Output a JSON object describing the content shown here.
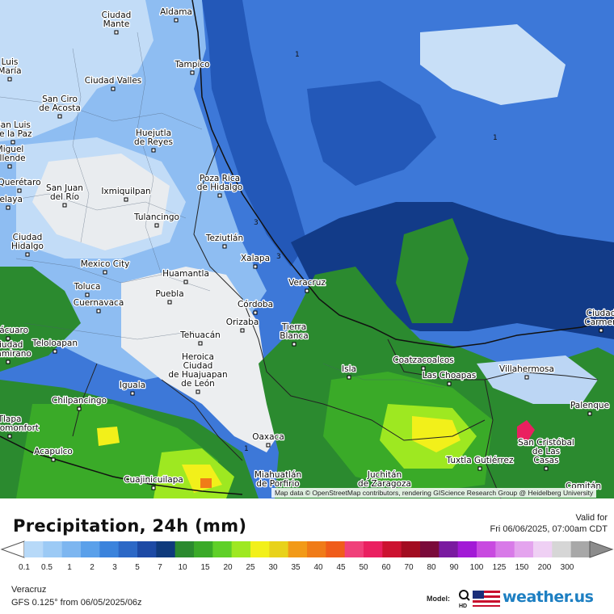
{
  "map": {
    "attribution": "Map data © OpenStreetMap contributors, rendering GIScience Research Group @ Heidelberg University",
    "contour_labels": [
      "1",
      "1",
      "1",
      "3",
      "3"
    ],
    "cities": [
      {
        "name": "Ciudad\nMante"
      },
      {
        "name": "Aldama"
      },
      {
        "name": "Tampico"
      },
      {
        "name": "Ciudad Valles"
      },
      {
        "name": "San Ciro\nde Acosta"
      },
      {
        "name": "Huejutla\nde Reyes"
      },
      {
        "name": "Poza Rica\nde Hidalgo"
      },
      {
        "name": "Querétaro"
      },
      {
        "name": "San Juan\ndel Río"
      },
      {
        "name": "Ixmiquilpan"
      },
      {
        "name": "Tulancingo"
      },
      {
        "name": "Teziutlán"
      },
      {
        "name": "Ciudad\nHidalgo"
      },
      {
        "name": "Mexico City"
      },
      {
        "name": "Xalapa"
      },
      {
        "name": "Huamantla"
      },
      {
        "name": "Toluca"
      },
      {
        "name": "Puebla"
      },
      {
        "name": "Veracruz"
      },
      {
        "name": "Cuernavaca"
      },
      {
        "name": "Córdoba"
      },
      {
        "name": "Orizaba"
      },
      {
        "name": "Tierra\nBlanca"
      },
      {
        "name": "Tehuacán"
      },
      {
        "name": "Teloloapan"
      },
      {
        "name": "Heroica\nCiudad\nde Huajuapan\nde León"
      },
      {
        "name": "Coatzacoalcos"
      },
      {
        "name": "Isla"
      },
      {
        "name": "Las Choapas"
      },
      {
        "name": "Villahermosa"
      },
      {
        "name": "Iguala"
      },
      {
        "name": "Chilpancingo"
      },
      {
        "name": "Palenque"
      },
      {
        "name": "Oaxaca"
      },
      {
        "name": "San Cristóbal\nde Las\nCasas"
      },
      {
        "name": "Acapulco"
      },
      {
        "name": "Tuxtla Gutiérrez"
      },
      {
        "name": "Cuajinicuilapa"
      },
      {
        "name": "Miahuatlán\nde Porfirio"
      },
      {
        "name": "Juchitán\nde Zaragoza"
      },
      {
        "name": "Ciudad\nCarmen"
      },
      {
        "name": "Luis\nMaría"
      },
      {
        "name": "San Luis\nde la Paz"
      },
      {
        "name": "Miguel\nAllende"
      },
      {
        "name": "Celaya"
      },
      {
        "name": "Zitácuaro"
      },
      {
        "name": "Ciudad\nAltamirano"
      },
      {
        "name": "Comitán"
      },
      {
        "name": "Tlapa\nde Comonfort"
      }
    ]
  },
  "header": {
    "title": "Precipitation, 24h (mm)",
    "valid_label": "Valid for",
    "valid_time": "Fri 06/06/2025, 07:00am CDT"
  },
  "scale": {
    "labels": [
      "0.1",
      "0.5",
      "1",
      "2",
      "3",
      "5",
      "7",
      "10",
      "15",
      "20",
      "25",
      "30",
      "35",
      "40",
      "45",
      "50",
      "60",
      "70",
      "80",
      "90",
      "100",
      "125",
      "150",
      "200",
      "300"
    ],
    "colors": [
      "#b7d9f8",
      "#9ccaf5",
      "#7db6f0",
      "#5aa0ea",
      "#3b83dc",
      "#2c68c6",
      "#1d4aa5",
      "#0f3a7c",
      "#2b8a2f",
      "#3aaa28",
      "#5fd028",
      "#9ee821",
      "#f2f01a",
      "#e8d21a",
      "#f29a18",
      "#f07b18",
      "#f05c1a",
      "#f0407a",
      "#ea2060",
      "#cc1230",
      "#a20c20",
      "#7a0a3a",
      "#7a1aa0",
      "#a21ad6",
      "#c84ae0",
      "#d87ae8",
      "#e4a4ee",
      "#efd0f4",
      "#d6d6d6",
      "#a8a8a8"
    ]
  },
  "footer": {
    "region": "Veracruz",
    "model_run": "GFS 0.125° from  06/05/2025/06z",
    "model_label": "Model:",
    "model_icon": "magnifier-hd-icon",
    "brand": "weather.",
    "brand_suffix": "us"
  }
}
